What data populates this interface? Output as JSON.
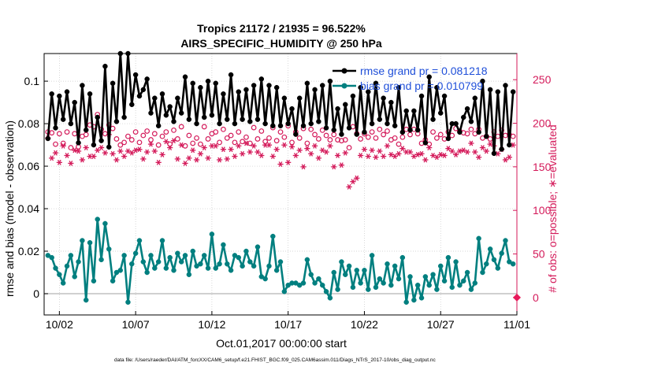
{
  "chart_data": {
    "type": "line",
    "title": "Tropics 21172 / 21935 = 96.522%",
    "subtitle": "AIRS_SPECIFIC_HUMIDITY @ 250 hPa",
    "xlabel": "Oct.01,2017 00:00:00 start",
    "ylabel": "rmse and bias (model - observation)",
    "y2label": "# of obs: o=possible; ∗=evaluated",
    "footer": "data file: /Users/raeder/DAI/ATM_forcXX/CAM6_setup/f.e21.FHIST_BGC.f09_025.CAM6assim.011/Diags_NTrS_2017-10/obs_diag_output.nc",
    "xlim": [
      0,
      31
    ],
    "ylim": [
      -0.01,
      0.113
    ],
    "y2lim": [
      -20,
      280
    ],
    "xticks": [
      {
        "x": 1,
        "label": "10/02"
      },
      {
        "x": 6,
        "label": "10/07"
      },
      {
        "x": 11,
        "label": "10/12"
      },
      {
        "x": 16,
        "label": "10/17"
      },
      {
        "x": 21,
        "label": "10/22"
      },
      {
        "x": 26,
        "label": "10/27"
      },
      {
        "x": 31,
        "label": "11/01"
      }
    ],
    "yticks": [
      {
        "v": 0,
        "label": "0"
      },
      {
        "v": 0.02,
        "label": "0.02"
      },
      {
        "v": 0.04,
        "label": "0.04"
      },
      {
        "v": 0.06,
        "label": "0.06"
      },
      {
        "v": 0.08,
        "label": "0.08"
      },
      {
        "v": 0.1,
        "label": "0.1"
      }
    ],
    "y2ticks": [
      {
        "v": 0,
        "label": "0"
      },
      {
        "v": 50,
        "label": "50"
      },
      {
        "v": 100,
        "label": "100"
      },
      {
        "v": 150,
        "label": "150"
      },
      {
        "v": 200,
        "label": "200"
      },
      {
        "v": 250,
        "label": "250"
      }
    ],
    "x_step": 0.25,
    "series": [
      {
        "name": "rmse grand pr = 0.081218",
        "axis": "left",
        "color": "#000000",
        "marker": "filled-circle",
        "values": [
          0.073,
          0.094,
          0.078,
          0.093,
          0.082,
          0.095,
          0.08,
          0.09,
          0.071,
          0.098,
          0.077,
          0.094,
          0.07,
          0.083,
          0.072,
          0.107,
          0.069,
          0.099,
          0.081,
          0.113,
          0.083,
          0.113,
          0.089,
          0.103,
          0.093,
          0.096,
          0.101,
          0.085,
          0.092,
          0.079,
          0.094,
          0.084,
          0.088,
          0.081,
          0.092,
          0.085,
          0.102,
          0.082,
          0.099,
          0.08,
          0.097,
          0.083,
          0.1,
          0.084,
          0.099,
          0.08,
          0.094,
          0.082,
          0.103,
          0.08,
          0.095,
          0.082,
          0.096,
          0.081,
          0.098,
          0.082,
          0.101,
          0.08,
          0.098,
          0.079,
          0.097,
          0.079,
          0.092,
          0.08,
          0.087,
          0.075,
          0.092,
          0.079,
          0.099,
          0.08,
          0.096,
          0.081,
          0.098,
          0.078,
          0.1,
          0.077,
          0.087,
          0.075,
          0.089,
          0.078,
          0.093,
          0.075,
          0.097,
          0.076,
          0.095,
          0.08,
          0.099,
          0.082,
          0.092,
          0.08,
          0.09,
          0.079,
          0.097,
          0.076,
          0.086,
          0.077,
          0.086,
          0.077,
          0.093,
          0.071,
          0.102,
          0.082,
          0.097,
          0.085,
          0.093,
          0.073,
          0.08,
          0.08,
          0.076,
          0.083,
          0.087,
          0.081,
          0.092,
          0.076,
          0.1,
          0.074,
          0.096,
          0.066,
          0.095,
          0.068,
          0.098,
          0.07,
          0.095
        ]
      },
      {
        "name": "bias grand pr = 0.010799",
        "axis": "left",
        "color": "#007f7f",
        "marker": "filled-circle",
        "values": [
          0.018,
          0.017,
          0.012,
          0.009,
          0.005,
          0.013,
          0.018,
          0.008,
          0.015,
          0.025,
          -0.003,
          0.024,
          0.006,
          0.035,
          0.016,
          0.033,
          0.021,
          0.006,
          0.01,
          0.011,
          0.018,
          -0.004,
          0.014,
          0.019,
          0.025,
          0.015,
          0.01,
          0.018,
          0.012,
          0.015,
          0.025,
          0.012,
          0.017,
          0.011,
          0.019,
          0.015,
          0.018,
          0.009,
          0.02,
          0.013,
          0.014,
          0.018,
          0.012,
          0.028,
          0.012,
          0.014,
          0.023,
          0.014,
          0.011,
          0.018,
          0.017,
          0.013,
          0.02,
          0.015,
          0.013,
          0.022,
          0.008,
          0.007,
          0.013,
          0.027,
          0.011,
          0.015,
          0.001,
          0.004,
          0.005,
          0.005,
          0.004,
          0.005,
          0.016,
          0.009,
          0.005,
          0.007,
          0.004,
          0.001,
          -0.002,
          0.01,
          0.002,
          0.015,
          0.009,
          0.013,
          0.003,
          0.011,
          0.005,
          0.011,
          0.002,
          0.018,
          0.003,
          0.007,
          0.005,
          0.014,
          0.004,
          0.013,
          0.007,
          0.017,
          -0.004,
          0.008,
          -0.003,
          0.004,
          -0.002,
          0.008,
          0.004,
          0.009,
          0.002,
          0.013,
          0.006,
          0.017,
          0.003,
          0.015,
          0.004,
          0.006,
          0.01,
          0.002,
          0.005,
          0.026,
          0.01,
          0.014,
          0.021,
          0.016,
          0.012,
          0.019,
          0.025,
          0.015,
          0.014
        ]
      },
      {
        "name": "possible (o)",
        "axis": "right",
        "color": "#d41a5a",
        "marker": "open-circle",
        "values": [
          190,
          189,
          176,
          188,
          177,
          190,
          172,
          188,
          173,
          185,
          187,
          198,
          196,
          210,
          193,
          188,
          198,
          194,
          182,
          175,
          178,
          185,
          181,
          190,
          178,
          186,
          191,
          181,
          188,
          175,
          185,
          190,
          176,
          192,
          182,
          196,
          174,
          186,
          177,
          183,
          176,
          196,
          182,
          188,
          190,
          178,
          193,
          183,
          186,
          178,
          190,
          179,
          184,
          177,
          195,
          182,
          191,
          179,
          183,
          195,
          180,
          190,
          184,
          197,
          178,
          190,
          183,
          194,
          177,
          193,
          187,
          182,
          192,
          186,
          181,
          187,
          181,
          180,
          181,
          172,
          196,
          188,
          182,
          188,
          184,
          190,
          183,
          193,
          187,
          191,
          181,
          183,
          176,
          184,
          193,
          187,
          193,
          188,
          177,
          181,
          176,
          190,
          183,
          187,
          182,
          190,
          186,
          194,
          191,
          189,
          188,
          193,
          188,
          193,
          183,
          185,
          182,
          190,
          185,
          192,
          186,
          187,
          185
        ]
      },
      {
        "name": "evaluated (∗)",
        "axis": "right",
        "color": "#d41a5a",
        "marker": "asterisk",
        "values": [
          183,
          160,
          166,
          155,
          174,
          163,
          154,
          169,
          168,
          158,
          172,
          162,
          162,
          169,
          172,
          166,
          187,
          165,
          158,
          168,
          162,
          168,
          166,
          169,
          170,
          159,
          167,
          176,
          168,
          155,
          164,
          179,
          172,
          180,
          159,
          175,
          154,
          160,
          169,
          158,
          165,
          172,
          160,
          174,
          174,
          158,
          170,
          159,
          170,
          162,
          174,
          165,
          177,
          167,
          174,
          167,
          163,
          175,
          175,
          162,
          170,
          153,
          175,
          155,
          173,
          163,
          169,
          150,
          171,
          165,
          174,
          160,
          169,
          167,
          174,
          150,
          163,
          152,
          166,
          127,
          133,
          137,
          163,
          170,
          162,
          169,
          161,
          168,
          162,
          174,
          164,
          162,
          165,
          171,
          167,
          167,
          162,
          164,
          165,
          158,
          172,
          163,
          161,
          164,
          163,
          171,
          168,
          164,
          168,
          169,
          167,
          177,
          167,
          161,
          172,
          168,
          176,
          174,
          165,
          170,
          158,
          161,
          175
        ]
      }
    ],
    "legend": {
      "location": "top-right",
      "entries": [
        "rmse grand pr = 0.081218",
        "bias grand pr = 0.010799"
      ],
      "text_color": "#1f4fd9"
    },
    "endpoint_marker": {
      "x": 31,
      "value": 0,
      "axis": "right",
      "color": "#e8195b"
    }
  }
}
